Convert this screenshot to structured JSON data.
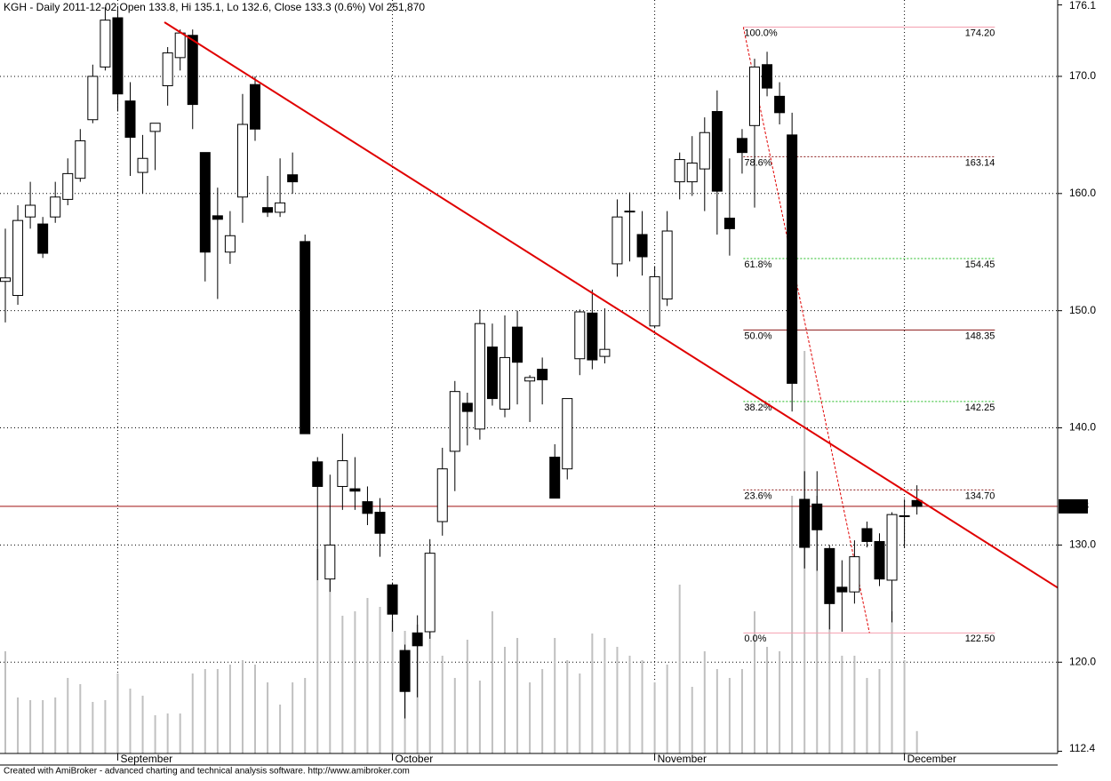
{
  "chart_data": {
    "type": "candlestick",
    "title": "KGH - Daily 2011-12-02 Open 133.8, Hi 135.1, Lo 132.6, Close 133.3 (0.6%) Vol 251,870",
    "footer": "Created with AmiBroker - advanced charting and technical analysis software. http://www.amibroker.com",
    "categories": [
      null,
      null,
      null,
      null,
      null,
      null,
      null,
      null,
      null,
      "September",
      null,
      null,
      null,
      null,
      null,
      null,
      null,
      null,
      null,
      null,
      null,
      null,
      null,
      null,
      null,
      null,
      null,
      null,
      null,
      null,
      null,
      "October",
      null,
      null,
      null,
      null,
      null,
      null,
      null,
      null,
      null,
      null,
      null,
      null,
      null,
      null,
      null,
      null,
      null,
      null,
      null,
      null,
      "November",
      null,
      null,
      null,
      null,
      null,
      null,
      null,
      null,
      null,
      null,
      null,
      null,
      null,
      null,
      null,
      null,
      null,
      null,
      null,
      "December",
      null
    ],
    "open": [
      152.5,
      151.3,
      158,
      157.4,
      158,
      159.5,
      161.3,
      166.3,
      170.8,
      175,
      167.9,
      161.8,
      165.3,
      169.2,
      171.6,
      173.5,
      163.5,
      158.1,
      155,
      159.7,
      169.3,
      158.8,
      158.4,
      161.6,
      155.9,
      137.1,
      127.1,
      135,
      134.8,
      133.7,
      132.8,
      126.6,
      121,
      122.5,
      122.6,
      132,
      138,
      142.1,
      139.9,
      146.9,
      141.6,
      148.6,
      144,
      145,
      137.5,
      136.5,
      145.9,
      149.8,
      146.1,
      154,
      158.5,
      156.5,
      148.7,
      151,
      161,
      161,
      162.1,
      167,
      157.9,
      164.7,
      165.8,
      171,
      168.3,
      165,
      133.9,
      133.5,
      129.7,
      126.4,
      126,
      131.4,
      130.3,
      127,
      132.5,
      133.8
    ],
    "high": [
      157,
      159,
      161,
      158,
      161,
      163,
      165.5,
      171,
      175.9,
      176,
      169.5,
      165,
      166,
      172.5,
      174,
      174,
      163.5,
      160.5,
      158.5,
      168.5,
      170,
      161.5,
      163,
      163.5,
      156.5,
      137.5,
      136,
      139.5,
      137.5,
      135,
      134,
      126.8,
      121.5,
      124,
      130.5,
      138.3,
      144,
      143,
      150.1,
      148.9,
      149.6,
      150,
      144.5,
      146,
      138.6,
      142.5,
      150.1,
      151.8,
      150.2,
      159.5,
      160.1,
      158.5,
      153.8,
      158.5,
      163.5,
      164.9,
      166.5,
      168.8,
      163,
      165.5,
      171.5,
      172.1,
      169.5,
      166.9,
      136.3,
      136.3,
      130,
      128.7,
      130.4,
      132,
      131,
      132.8,
      133.9,
      135.1
    ],
    "low": [
      149,
      150.5,
      157,
      154.5,
      157.5,
      159,
      161,
      166,
      170.5,
      167,
      161.5,
      160,
      162,
      167.5,
      170.5,
      165.5,
      152.5,
      151,
      154,
      157.5,
      164.5,
      158,
      158,
      160,
      139.5,
      127,
      126,
      133,
      133,
      131.7,
      129,
      122.6,
      115.2,
      117,
      122,
      130.8,
      134.6,
      138.5,
      139,
      141.9,
      140.9,
      142,
      140.5,
      142,
      134,
      135.6,
      144.5,
      145,
      145.5,
      152.9,
      154.2,
      153,
      148.5,
      150.4,
      159.5,
      159.8,
      158.5,
      156.5,
      154.7,
      161.7,
      158.8,
      168.3,
      165.9,
      141.4,
      128,
      127.8,
      122.8,
      122.6,
      125,
      129.8,
      126.5,
      123.4,
      129.8,
      132.6
    ],
    "close": [
      152.8,
      157.7,
      159,
      154.9,
      159.7,
      161.7,
      164.5,
      170,
      174.8,
      168.5,
      164.8,
      163,
      166,
      172,
      173.7,
      167.6,
      155,
      157.8,
      156.4,
      165.9,
      165.5,
      158.4,
      159.2,
      161,
      139.5,
      135,
      130,
      137.2,
      134.6,
      132.7,
      131,
      124.1,
      117.5,
      121.4,
      129.3,
      136.5,
      143.1,
      141.4,
      148.9,
      142.5,
      146,
      145.6,
      144.3,
      144.1,
      134,
      142.5,
      149.9,
      145.8,
      146.7,
      158,
      158.5,
      154.6,
      152.9,
      156.8,
      162.9,
      162.6,
      165.2,
      160.2,
      157,
      163.5,
      170.8,
      169,
      166.9,
      143.8,
      129.8,
      131.3,
      125,
      126,
      129,
      130.3,
      127.1,
      132.6,
      132.5,
      133.3
    ],
    "volume": [
      1150000,
      630000,
      600000,
      600000,
      630000,
      850000,
      780000,
      580000,
      600000,
      900000,
      730000,
      650000,
      430000,
      450000,
      450000,
      900000,
      950000,
      950000,
      1000000,
      1050000,
      1000000,
      800000,
      550000,
      800000,
      850000,
      2300000,
      2150000,
      1550000,
      1600000,
      1750000,
      1650000,
      1500000,
      1380000,
      1450000,
      1550000,
      1100000,
      850000,
      1280000,
      820000,
      1600000,
      1200000,
      1300000,
      800000,
      950000,
      1300000,
      1050000,
      900000,
      1350000,
      1300000,
      1200000,
      1100000,
      1050000,
      800000,
      1000000,
      1900000,
      750000,
      1150000,
      950000,
      850000,
      950000,
      1600000,
      1200000,
      1150000,
      2900000,
      4530000,
      2900000,
      2300000,
      1100000,
      1100000,
      850000,
      950000,
      1600000,
      1050000,
      251870
    ],
    "volume_color": "#c0c0c0",
    "ylim": [
      112.4,
      176.1
    ],
    "yticks": [
      112.4,
      {
        "value": 120,
        "label": "120.0"
      },
      {
        "value": 130,
        "label": "130.0"
      },
      {
        "value": 140,
        "label": "140.0"
      },
      {
        "value": 150,
        "label": "150.0"
      },
      {
        "value": 160,
        "label": "160.0"
      },
      {
        "value": 170,
        "label": "170.0"
      },
      176.1
    ],
    "grid": true,
    "last_price": 133.3,
    "last_price_color": "#a01010",
    "trendline": {
      "x": [
        12.74,
        84.27
      ],
      "y": [
        174.62,
        126.36
      ],
      "color": "#e00000"
    },
    "fib": {
      "x": [
        59.1,
        69.2
      ],
      "color": "#e00000",
      "levels": [
        {
          "label": "100.0%",
          "price": {
            "value": 174.2,
            "label": "174.20"
          },
          "color": "#f4a0b0",
          "dashed": false
        },
        {
          "label": "78.6%",
          "price": 163.14,
          "color": "#8b1a1a",
          "dashed": true
        },
        {
          "label": "61.8%",
          "price": 154.45,
          "color": "#22bb22",
          "dashed": true
        },
        {
          "label": "50.0%",
          "price": 148.35,
          "color": "#8b1a1a",
          "dashed": false
        },
        {
          "label": "38.2%",
          "price": 142.25,
          "color": "#22bb22",
          "dashed": true
        },
        {
          "label": "23.6%",
          "price": {
            "value": 134.7,
            "label": "134.70"
          },
          "color": "#8b1a1a",
          "dashed": true
        },
        {
          "label": "0.0%",
          "price": {
            "value": 122.5,
            "label": "122.50"
          },
          "color": "#f4a0b0",
          "dashed": false
        }
      ]
    }
  }
}
